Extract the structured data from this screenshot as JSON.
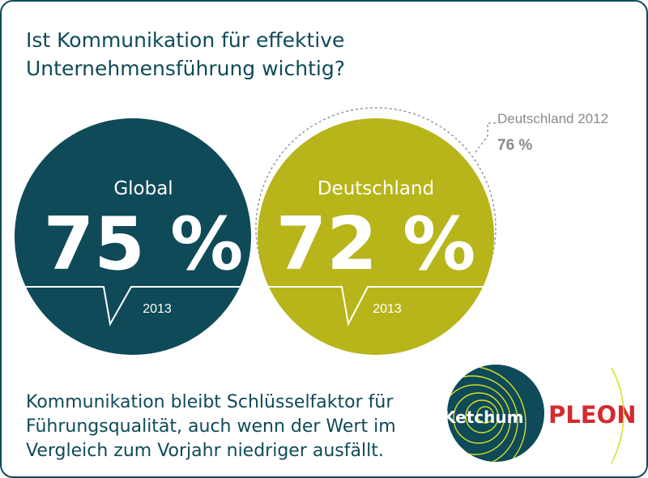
{
  "colors": {
    "teal": "#0f4a59",
    "olive": "#b7b51a",
    "gray": "#8a8a8a",
    "brand_red": "#d42a30"
  },
  "title": {
    "line1": "Ist Kommunikation für effektive",
    "line2": "Unternehmensführung wichtig?"
  },
  "chart_data": {
    "type": "bubble",
    "series": [
      {
        "name": "Global",
        "value": 75,
        "display": "75 %",
        "year": "2013",
        "color": "#0f4a59"
      },
      {
        "name": "Deutschland",
        "value": 72,
        "display": "72 %",
        "year": "2013",
        "color": "#b7b51a"
      }
    ],
    "comparison": {
      "label": "Deutschland 2012",
      "value": 76,
      "display": "76 %"
    }
  },
  "footer": {
    "line1": "Kommunikation bleibt Schlüsselfaktor für",
    "line2": "Führungsqualität, auch wenn der Wert im",
    "line3": "Vergleich zum Vorjahr niedriger ausfällt."
  },
  "logo": {
    "ketchum": "Ketchum",
    "pleon": "PLEON"
  }
}
